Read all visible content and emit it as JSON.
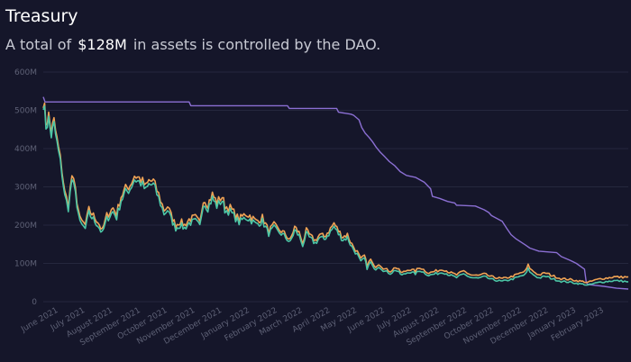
{
  "header": {
    "title": "Treasury",
    "subtitle_prefix": "A total of",
    "subtitle_amount": "$128M",
    "subtitle_suffix": "in assets is controlled by the DAO."
  },
  "colors": {
    "background": "#15162a",
    "grid": "#25273d",
    "axis_text": "#5e6176",
    "purple": "#8b6fd3",
    "orange": "#f0a355",
    "teal": "#4cc6a6"
  },
  "chart_data": {
    "type": "line",
    "title": "",
    "xlabel": "",
    "ylabel": "",
    "ylim": [
      0,
      600
    ],
    "xlim": [
      "2021-05-15",
      "2023-02-28"
    ],
    "y_ticks": [
      0,
      100,
      200,
      300,
      400,
      500,
      600
    ],
    "y_tick_labels": [
      "0",
      "100M",
      "200M",
      "300M",
      "400M",
      "500M",
      "600M"
    ],
    "x_ticks": [
      "2021-06-01",
      "2021-07-01",
      "2021-08-01",
      "2021-09-01",
      "2021-10-01",
      "2021-11-01",
      "2021-12-01",
      "2022-01-01",
      "2022-02-01",
      "2022-03-01",
      "2022-04-01",
      "2022-05-01",
      "2022-06-01",
      "2022-07-01",
      "2022-08-01",
      "2022-09-01",
      "2022-10-01",
      "2022-11-01",
      "2022-12-01",
      "2023-01-01",
      "2023-02-01"
    ],
    "x_tick_labels": [
      "June 2021",
      "July 2021",
      "August 2021",
      "September 2021",
      "October 2021",
      "November 2021",
      "December 2021",
      "January 2022",
      "February 2022",
      "March 2022",
      "April 2022",
      "May 2022",
      "June 2022",
      "July 2022",
      "August 2022",
      "September 2022",
      "October 2022",
      "November 2022",
      "December 2022",
      "January 2023",
      "February 2023"
    ],
    "grid": true,
    "legend": "none",
    "series": [
      {
        "color": "#8b6fd3",
        "x": [
          "2021-05-15",
          "2021-05-17",
          "2021-10-25",
          "2021-10-27",
          "2022-02-12",
          "2022-02-14",
          "2022-04-08",
          "2022-04-10",
          "2022-04-24",
          "2022-04-27",
          "2022-05-03",
          "2022-05-06",
          "2022-05-10",
          "2022-05-14",
          "2022-05-18",
          "2022-05-22",
          "2022-05-27",
          "2022-06-01",
          "2022-06-06",
          "2022-06-12",
          "2022-06-18",
          "2022-06-25",
          "2022-07-05",
          "2022-07-15",
          "2022-07-22",
          "2022-07-24",
          "2022-08-01",
          "2022-08-10",
          "2022-08-18",
          "2022-08-20",
          "2022-09-10",
          "2022-09-20",
          "2022-09-25",
          "2022-09-28",
          "2022-10-10",
          "2022-10-15",
          "2022-10-20",
          "2022-10-25",
          "2022-11-05",
          "2022-11-10",
          "2022-11-20",
          "2022-12-10",
          "2022-12-15",
          "2022-12-25",
          "2023-01-01",
          "2023-01-10",
          "2023-01-12",
          "2023-01-14",
          "2023-02-01",
          "2023-02-15",
          "2023-02-28"
        ],
        "y": [
          535,
          522,
          522,
          512,
          512,
          505,
          505,
          495,
          490,
          487,
          475,
          455,
          440,
          430,
          418,
          404,
          390,
          378,
          366,
          355,
          340,
          330,
          325,
          312,
          295,
          275,
          270,
          262,
          258,
          252,
          250,
          240,
          233,
          225,
          210,
          192,
          175,
          165,
          148,
          140,
          132,
          128,
          118,
          108,
          100,
          85,
          50,
          45,
          40,
          35,
          33
        ]
      },
      {
        "color": "#f0a355",
        "x": [
          "2021-05-15",
          "2021-05-18",
          "2021-05-21",
          "2021-05-24",
          "2021-05-27",
          "2021-06-01",
          "2021-06-05",
          "2021-06-08",
          "2021-06-12",
          "2021-06-16",
          "2021-06-20",
          "2021-06-25",
          "2021-07-01",
          "2021-07-05",
          "2021-07-10",
          "2021-07-15",
          "2021-07-20",
          "2021-07-25",
          "2021-08-01",
          "2021-08-05",
          "2021-08-10",
          "2021-08-15",
          "2021-08-20",
          "2021-08-25",
          "2021-09-01",
          "2021-09-07",
          "2021-09-10",
          "2021-09-15",
          "2021-09-21",
          "2021-09-27",
          "2021-10-01",
          "2021-10-05",
          "2021-10-10",
          "2021-10-15",
          "2021-10-20",
          "2021-10-25",
          "2021-11-01",
          "2021-11-06",
          "2021-11-10",
          "2021-11-15",
          "2021-11-20",
          "2021-11-25",
          "2021-12-01",
          "2021-12-04",
          "2021-12-10",
          "2021-12-20",
          "2021-12-27",
          "2022-01-01",
          "2022-01-08",
          "2022-01-15",
          "2022-01-22",
          "2022-01-28",
          "2022-02-01",
          "2022-02-05",
          "2022-02-10",
          "2022-02-15",
          "2022-02-20",
          "2022-02-25",
          "2022-03-01",
          "2022-03-05",
          "2022-03-10",
          "2022-03-15",
          "2022-03-20",
          "2022-03-25",
          "2022-04-01",
          "2022-04-05",
          "2022-04-10",
          "2022-04-15",
          "2022-04-20",
          "2022-04-25",
          "2022-05-01",
          "2022-05-05",
          "2022-05-09",
          "2022-05-12",
          "2022-05-16",
          "2022-05-20",
          "2022-05-25",
          "2022-06-01",
          "2022-06-07",
          "2022-06-13",
          "2022-06-20",
          "2022-06-28",
          "2022-07-05",
          "2022-07-10",
          "2022-07-20",
          "2022-07-28",
          "2022-08-05",
          "2022-08-14",
          "2022-08-20",
          "2022-08-28",
          "2022-09-05",
          "2022-09-13",
          "2022-09-20",
          "2022-09-28",
          "2022-10-05",
          "2022-10-10",
          "2022-10-20",
          "2022-10-28",
          "2022-11-05",
          "2022-11-08",
          "2022-11-12",
          "2022-11-20",
          "2022-11-28",
          "2022-12-05",
          "2022-12-15",
          "2022-12-25",
          "2023-01-01",
          "2023-01-10",
          "2023-01-14",
          "2023-01-20",
          "2023-01-28",
          "2023-02-05",
          "2023-02-12",
          "2023-02-20",
          "2023-02-28"
        ],
        "y": [
          530,
          470,
          485,
          445,
          470,
          400,
          345,
          285,
          255,
          330,
          290,
          215,
          200,
          240,
          225,
          210,
          185,
          225,
          245,
          230,
          275,
          295,
          305,
          330,
          320,
          300,
          315,
          315,
          280,
          240,
          250,
          225,
          200,
          210,
          200,
          215,
          220,
          205,
          270,
          255,
          280,
          260,
          275,
          250,
          245,
          215,
          230,
          225,
          210,
          220,
          185,
          200,
          190,
          185,
          175,
          160,
          195,
          180,
          155,
          185,
          170,
          160,
          175,
          170,
          190,
          205,
          185,
          170,
          175,
          150,
          130,
          110,
          120,
          95,
          110,
          90,
          100,
          85,
          80,
          90,
          75,
          85,
          80,
          90,
          75,
          80,
          85,
          75,
          70,
          80,
          70,
          68,
          72,
          65,
          62,
          60,
          65,
          72,
          80,
          95,
          82,
          70,
          75,
          68,
          60,
          58,
          55,
          52,
          50,
          55,
          60,
          62,
          65,
          64,
          65
        ]
      },
      {
        "color": "#4cc6a6",
        "x": [
          "2021-05-15",
          "2021-05-18",
          "2021-05-21",
          "2021-05-24",
          "2021-05-27",
          "2021-06-01",
          "2021-06-05",
          "2021-06-08",
          "2021-06-12",
          "2021-06-16",
          "2021-06-20",
          "2021-06-25",
          "2021-07-01",
          "2021-07-05",
          "2021-07-10",
          "2021-07-15",
          "2021-07-20",
          "2021-07-25",
          "2021-08-01",
          "2021-08-05",
          "2021-08-10",
          "2021-08-15",
          "2021-08-20",
          "2021-08-25",
          "2021-09-01",
          "2021-09-07",
          "2021-09-10",
          "2021-09-15",
          "2021-09-21",
          "2021-09-27",
          "2021-10-01",
          "2021-10-05",
          "2021-10-10",
          "2021-10-15",
          "2021-10-20",
          "2021-10-25",
          "2021-11-01",
          "2021-11-06",
          "2021-11-10",
          "2021-11-15",
          "2021-11-20",
          "2021-11-25",
          "2021-12-01",
          "2021-12-04",
          "2021-12-10",
          "2021-12-20",
          "2021-12-27",
          "2022-01-01",
          "2022-01-08",
          "2022-01-15",
          "2022-01-22",
          "2022-01-28",
          "2022-02-01",
          "2022-02-05",
          "2022-02-10",
          "2022-02-15",
          "2022-02-20",
          "2022-02-25",
          "2022-03-01",
          "2022-03-05",
          "2022-03-10",
          "2022-03-15",
          "2022-03-20",
          "2022-03-25",
          "2022-04-01",
          "2022-04-05",
          "2022-04-10",
          "2022-04-15",
          "2022-04-20",
          "2022-04-25",
          "2022-05-01",
          "2022-05-05",
          "2022-05-09",
          "2022-05-12",
          "2022-05-16",
          "2022-05-20",
          "2022-05-25",
          "2022-06-01",
          "2022-06-07",
          "2022-06-13",
          "2022-06-20",
          "2022-06-28",
          "2022-07-05",
          "2022-07-10",
          "2022-07-20",
          "2022-07-28",
          "2022-08-05",
          "2022-08-14",
          "2022-08-20",
          "2022-08-28",
          "2022-09-05",
          "2022-09-13",
          "2022-09-20",
          "2022-09-28",
          "2022-10-05",
          "2022-10-10",
          "2022-10-20",
          "2022-10-28",
          "2022-11-05",
          "2022-11-08",
          "2022-11-12",
          "2022-11-20",
          "2022-11-28",
          "2022-12-05",
          "2022-12-15",
          "2022-12-25",
          "2023-01-01",
          "2023-01-10",
          "2023-01-14",
          "2023-01-20",
          "2023-01-28",
          "2023-02-05",
          "2023-02-12",
          "2023-02-20",
          "2023-02-28"
        ],
        "y": [
          525,
          460,
          475,
          435,
          460,
          390,
          335,
          275,
          245,
          320,
          280,
          205,
          190,
          230,
          215,
          200,
          178,
          215,
          235,
          220,
          265,
          285,
          295,
          320,
          310,
          290,
          305,
          305,
          270,
          230,
          240,
          215,
          192,
          200,
          192,
          205,
          210,
          197,
          260,
          245,
          270,
          250,
          265,
          240,
          235,
          207,
          220,
          215,
          202,
          210,
          178,
          192,
          183,
          178,
          168,
          154,
          186,
          172,
          148,
          176,
          163,
          153,
          167,
          163,
          182,
          196,
          177,
          162,
          167,
          143,
          123,
          103,
          113,
          88,
          103,
          83,
          93,
          79,
          74,
          83,
          69,
          78,
          73,
          82,
          69,
          73,
          77,
          68,
          63,
          72,
          63,
          61,
          65,
          58,
          55,
          53,
          58,
          64,
          71,
          85,
          73,
          62,
          66,
          60,
          53,
          51,
          48,
          45,
          43,
          47,
          51,
          53,
          55,
          54,
          52
        ]
      }
    ]
  }
}
